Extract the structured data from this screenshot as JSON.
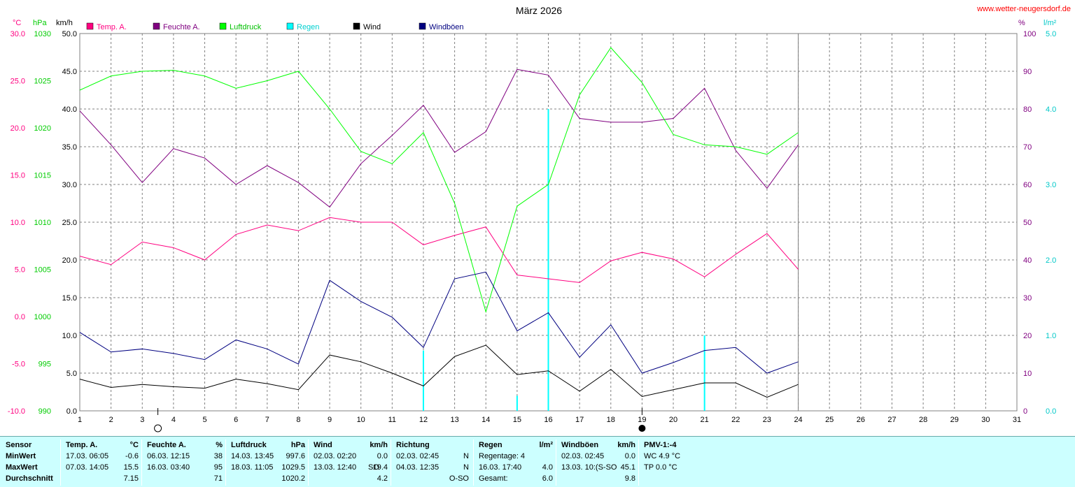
{
  "site": "www.wetter-neugersdorf.de",
  "chart_data": {
    "type": "line",
    "title": "März 2026",
    "x": {
      "min": 1,
      "max": 31,
      "ticks": [
        1,
        2,
        3,
        4,
        5,
        6,
        7,
        8,
        9,
        10,
        11,
        12,
        13,
        14,
        15,
        16,
        17,
        18,
        19,
        20,
        21,
        22,
        23,
        24,
        25,
        26,
        27,
        28,
        29,
        30,
        31
      ]
    },
    "axes": {
      "temp": {
        "unit": "°C",
        "min": -10,
        "max": 30,
        "ticks": [
          "30.0",
          "25.0",
          "20.0",
          "15.0",
          "10.0",
          "5.0",
          "0.0",
          "-5.0",
          "-10.0"
        ],
        "color": "#ff0080"
      },
      "press": {
        "unit": "hPa",
        "min": 990,
        "max": 1030,
        "ticks": [
          "1030",
          "1025",
          "1020",
          "1015",
          "1010",
          "1005",
          "1000",
          "995",
          "990"
        ],
        "color": "#00cc00"
      },
      "wind": {
        "unit": "km/h",
        "min": 0,
        "max": 50,
        "ticks": [
          "50.0",
          "45.0",
          "40.0",
          "35.0",
          "30.0",
          "25.0",
          "20.0",
          "15.0",
          "10.0",
          "5.0",
          "0.0"
        ],
        "color": "#000000"
      },
      "hum": {
        "unit": "%",
        "min": 0,
        "max": 100,
        "ticks": [
          "100",
          "90",
          "80",
          "70",
          "60",
          "50",
          "40",
          "30",
          "20",
          "10",
          "0"
        ],
        "color": "#800080"
      },
      "rain": {
        "unit": "l/m²",
        "min": 0,
        "max": 5,
        "ticks": [
          "5.0",
          "4.0",
          "3.0",
          "2.0",
          "1.0",
          "0.0"
        ],
        "color": "#00c8c8"
      }
    },
    "legend": [
      {
        "name": "Temp. A.",
        "color": "#ff0080"
      },
      {
        "name": "Feuchte A.",
        "color": "#800080"
      },
      {
        "name": "Luftdruck",
        "color": "#00ff00"
      },
      {
        "name": "Regen",
        "color": "#00ffff"
      },
      {
        "name": "Wind",
        "color": "#000000"
      },
      {
        "name": "Windböen",
        "color": "#000080"
      }
    ],
    "series": [
      {
        "name": "Temp. A.",
        "axis": "temp",
        "color": "#ff0080",
        "x": [
          1,
          2,
          3,
          4,
          5,
          6,
          7,
          8,
          9,
          10,
          11,
          12,
          13,
          14,
          15,
          16,
          17,
          18,
          19,
          20,
          21,
          22,
          23,
          24
        ],
        "y": [
          6.4,
          5.5,
          7.9,
          7.3,
          6.0,
          8.7,
          9.7,
          9.1,
          10.5,
          10.0,
          10.0,
          7.6,
          8.6,
          9.5,
          4.4,
          4.0,
          3.6,
          5.9,
          6.8,
          6.1,
          4.2,
          6.6,
          8.8,
          5.0
        ]
      },
      {
        "name": "Feuchte A.",
        "axis": "hum",
        "color": "#800080",
        "x": [
          1,
          2,
          3,
          4,
          5,
          6,
          7,
          8,
          9,
          10,
          11,
          12,
          13,
          14,
          15,
          16,
          17,
          18,
          19,
          20,
          21,
          22,
          23,
          24
        ],
        "y": [
          79.5,
          70.5,
          60.5,
          69.5,
          67.0,
          60.0,
          65.0,
          60.5,
          54.0,
          65.5,
          73.0,
          81.0,
          68.5,
          74.0,
          90.5,
          89.0,
          77.5,
          76.5,
          76.5,
          77.5,
          85.5,
          69.0,
          59.0,
          70.5
        ]
      },
      {
        "name": "Luftdruck",
        "axis": "press",
        "color": "#00ff00",
        "x": [
          1,
          2,
          3,
          4,
          5,
          6,
          7,
          8,
          9,
          10,
          11,
          12,
          13,
          14,
          15,
          16,
          17,
          18,
          19,
          20,
          21,
          22,
          23,
          24
        ],
        "y": [
          1024.0,
          1025.5,
          1026.0,
          1026.1,
          1025.5,
          1024.2,
          1025.0,
          1026.0,
          1022.0,
          1017.5,
          1016.2,
          1019.5,
          1012.0,
          1000.5,
          1011.7,
          1014.0,
          1023.5,
          1028.5,
          1024.8,
          1019.3,
          1018.2,
          1018.0,
          1017.2,
          1019.5
        ]
      },
      {
        "name": "Wind",
        "axis": "wind",
        "color": "#000000",
        "x": [
          1,
          2,
          3,
          4,
          5,
          6,
          7,
          8,
          9,
          10,
          11,
          12,
          13,
          14,
          15,
          16,
          17,
          18,
          19,
          20,
          21,
          22,
          23,
          24
        ],
        "y": [
          4.2,
          3.1,
          3.5,
          3.2,
          3.0,
          4.2,
          3.6,
          2.8,
          7.4,
          6.5,
          5.0,
          3.3,
          7.2,
          8.7,
          4.8,
          5.3,
          2.6,
          5.5,
          1.9,
          2.8,
          3.7,
          3.7,
          1.8,
          3.5
        ]
      },
      {
        "name": "Windböen",
        "axis": "wind",
        "color": "#000080",
        "x": [
          1,
          2,
          3,
          4,
          5,
          6,
          7,
          8,
          9,
          10,
          11,
          12,
          13,
          14,
          15,
          16,
          17,
          18,
          19,
          20,
          21,
          22,
          23,
          24
        ],
        "y": [
          10.4,
          7.8,
          8.2,
          7.6,
          6.8,
          9.4,
          8.2,
          6.2,
          17.3,
          14.5,
          12.4,
          8.4,
          17.5,
          18.4,
          10.6,
          13.0,
          7.1,
          11.4,
          5.0,
          6.4,
          8.0,
          8.4,
          5.0,
          6.5
        ]
      },
      {
        "name": "Regen",
        "axis": "rain",
        "color": "#00ffff",
        "type": "bar",
        "x": [
          12,
          15,
          16,
          21
        ],
        "y": [
          0.8,
          0.2,
          4.0,
          1.0
        ]
      }
    ],
    "grid": true,
    "end_day": 24,
    "moon": [
      {
        "day": 3.5,
        "phase": "full"
      },
      {
        "day": 19,
        "phase": "new"
      }
    ]
  },
  "summary": {
    "sensor": {
      "title": "Sensor",
      "rows": [
        "MinWert",
        "MaxWert",
        "Durchschnitt"
      ]
    },
    "temp": {
      "title": "Temp. A.",
      "unit": "°C",
      "min": {
        "when": "17.03.  06:05",
        "val": "-0.6"
      },
      "max": {
        "when": "07.03.  14:05",
        "val": "15.5"
      },
      "avg": "7.15"
    },
    "hum": {
      "title": "Feuchte A.",
      "unit": "%",
      "min": {
        "when": "06.03.  12:15",
        "val": "38"
      },
      "max": {
        "when": "16.03.  03:40",
        "val": "95"
      },
      "avg": "71"
    },
    "press": {
      "title": "Luftdruck",
      "unit": "hPa",
      "min": {
        "when": "14.03.  13:45",
        "val": "997.6"
      },
      "max": {
        "when": "18.03.  11:05",
        "val": "1029.5"
      },
      "avg": "1020.2"
    },
    "wind": {
      "title": "Wind",
      "unit": "km/h",
      "min": {
        "when": "02.03.  02:20",
        "val": "0.0"
      },
      "max": {
        "when": "13.03.  12:40",
        "dir": "SO",
        "val": "19.4"
      },
      "avg": "4.2"
    },
    "dir": {
      "title": "Richtung",
      "min": {
        "when": "02.03.  02:45",
        "val": "N"
      },
      "max": {
        "when": "04.03.  12:35",
        "val": "N"
      },
      "avg": "O-SO"
    },
    "rain": {
      "title": "Regen",
      "unit": "l/m²",
      "r1": {
        "label": "Regentage: 4"
      },
      "r2": {
        "when": "16.03.  17:40",
        "val": "4.0"
      },
      "r3": {
        "label": "Gesamt:",
        "val": "6.0"
      }
    },
    "gust": {
      "title": "Windböen",
      "unit": "km/h",
      "min": {
        "when": "02.03.  02:45",
        "val": "0.0"
      },
      "max": {
        "when": "13.03.  10:(S-SO",
        "val": "45.1"
      },
      "avg": "9.8"
    },
    "pmv": {
      "title": "PMV-1:-4",
      "l1": "WC 4.9 °C",
      "l2": "TP 0.0 °C"
    }
  }
}
